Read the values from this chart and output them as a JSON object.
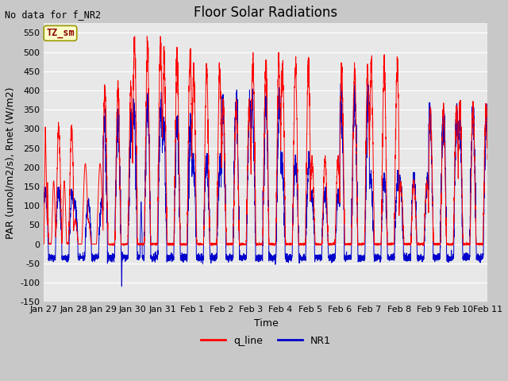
{
  "title": "Floor Solar Radiations",
  "xlabel": "Time",
  "ylabel": "PAR (umol/m2/s), Rnet (W/m2)",
  "no_data_label": "No data for f_NR2",
  "legend_label": "TZ_sm",
  "ylim": [
    -150,
    575
  ],
  "yticks": [
    -150,
    -100,
    -50,
    0,
    50,
    100,
    150,
    200,
    250,
    300,
    350,
    400,
    450,
    500,
    550
  ],
  "xtick_labels": [
    "Jan 27",
    "Jan 28",
    "Jan 29",
    "Jan 30",
    "Jan 31",
    "Feb 1",
    "Feb 2",
    "Feb 3",
    "Feb 4",
    "Feb 5",
    "Feb 6",
    "Feb 7",
    "Feb 8",
    "Feb 9",
    "Feb 10",
    "Feb 11"
  ],
  "q_line_color": "#ff0000",
  "NR1_color": "#0000cc",
  "fig_bg_color": "#c8c8c8",
  "plot_bg_color": "#e8e8e8",
  "legend_box_facecolor": "#ffffcc",
  "legend_box_edgecolor": "#999900",
  "title_fontsize": 12,
  "label_fontsize": 9,
  "tick_fontsize": 8,
  "n_days": 15,
  "pts_per_day": 288,
  "q_peaks": [
    305,
    210,
    405,
    515,
    490,
    450,
    360,
    475,
    465,
    220,
    450,
    470,
    160,
    350,
    360
  ],
  "nr1_peaks": [
    135,
    110,
    320,
    360,
    310,
    215,
    365,
    370,
    220,
    135,
    380,
    175,
    170,
    335,
    335
  ],
  "q_night_val": 0.0,
  "nr1_night_val": -35.0,
  "nr1_min_dip": -110.0
}
